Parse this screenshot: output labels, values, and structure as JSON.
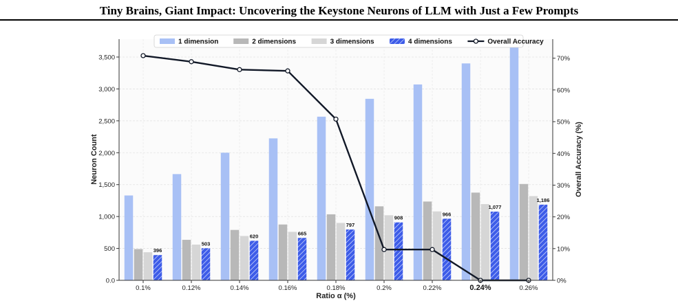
{
  "header": {
    "title": "Tiny Brains, Giant Impact: Uncovering the Keystone Neurons of LLM with Just a Few Prompts"
  },
  "chart_data": {
    "type": "bar",
    "categories": [
      "0.1%",
      "0.12%",
      "0.14%",
      "0.16%",
      "0.18%",
      "0.2%",
      "0.22%",
      "0.24%",
      "0.26%"
    ],
    "highlighted_category": "0.24%",
    "xlabel": "Ratio α (%)",
    "ylabel": "Neuron Count",
    "y2label": "Overall Accuracy (%)",
    "ylim": [
      0,
      3780
    ],
    "y2lim": [
      0,
      76
    ],
    "y_ticks": [
      0,
      500,
      1000,
      1500,
      2000,
      2500,
      3000,
      3500
    ],
    "y_tick_labels": [
      "0.0",
      "500",
      "1,000",
      "1,500",
      "2,000",
      "2,500",
      "3,000",
      "3,500"
    ],
    "y2_ticks": [
      0,
      10,
      20,
      30,
      40,
      50,
      60,
      70
    ],
    "y2_tick_labels": [
      "0%",
      "10%",
      "20%",
      "30%",
      "40%",
      "50%",
      "60%",
      "70%"
    ],
    "grid": true,
    "legend_position": "top-center",
    "series": [
      {
        "name": "1 dimension",
        "color": "#a8c0f5",
        "pattern": "solid",
        "values": [
          1330,
          1665,
          2000,
          2225,
          2565,
          2845,
          3070,
          3400,
          3740
        ]
      },
      {
        "name": "2 dimensions",
        "color": "#b8b8b8",
        "pattern": "solid",
        "values": [
          490,
          635,
          790,
          875,
          1035,
          1160,
          1235,
          1375,
          1510
        ]
      },
      {
        "name": "3 dimensions",
        "color": "#d6d6d6",
        "pattern": "solid",
        "values": [
          440,
          560,
          695,
          760,
          900,
          1020,
          1080,
          1195,
          1320
        ]
      },
      {
        "name": "4 dimensions",
        "color": "#3d5ce8",
        "pattern": "hatched",
        "values": [
          396,
          503,
          620,
          665,
          797,
          908,
          966,
          1077,
          1186
        ],
        "data_labels": [
          "396",
          "503",
          "620",
          "665",
          "797",
          "908",
          "966",
          "1,077",
          "1,186"
        ]
      }
    ],
    "line_series": {
      "name": "Overall Accuracy",
      "color": "#111827",
      "axis": "right",
      "values": [
        70.8,
        68.9,
        66.4,
        66.0,
        50.8,
        9.7,
        9.7,
        0,
        0
      ]
    }
  }
}
